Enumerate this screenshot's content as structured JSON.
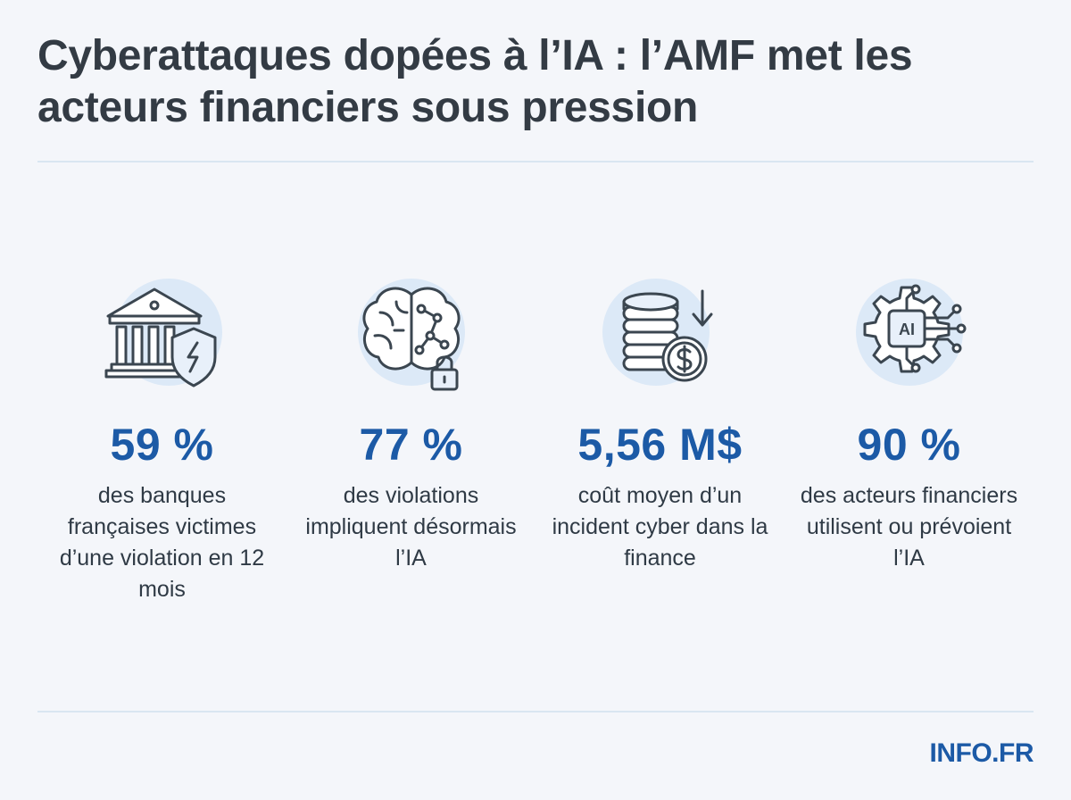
{
  "title": "Cyberattaques dopées à l’IA : l’AMF met les acteurs financiers sous pression",
  "stats": [
    {
      "icon": "bank-shield-icon",
      "value": "59 %",
      "description": "des banques françaises victimes d’une violation en 12 mois"
    },
    {
      "icon": "brain-lock-icon",
      "value": "77 %",
      "description": "des violations impliquent désormais l’IA"
    },
    {
      "icon": "coins-dollar-icon",
      "value": "5,56 M$",
      "description": "coût moyen d’un incident cyber dans la finance"
    },
    {
      "icon": "ai-gear-icon",
      "value": "90 %",
      "description": "des acteurs financiers utilisent ou prévoient l’IA",
      "chip_label": "AI"
    }
  ],
  "brand": "INFO.FR",
  "colors": {
    "background": "#f4f6fa",
    "accent": "#1c5aa6",
    "text": "#2f3a45",
    "halo": "#dce9f7"
  }
}
